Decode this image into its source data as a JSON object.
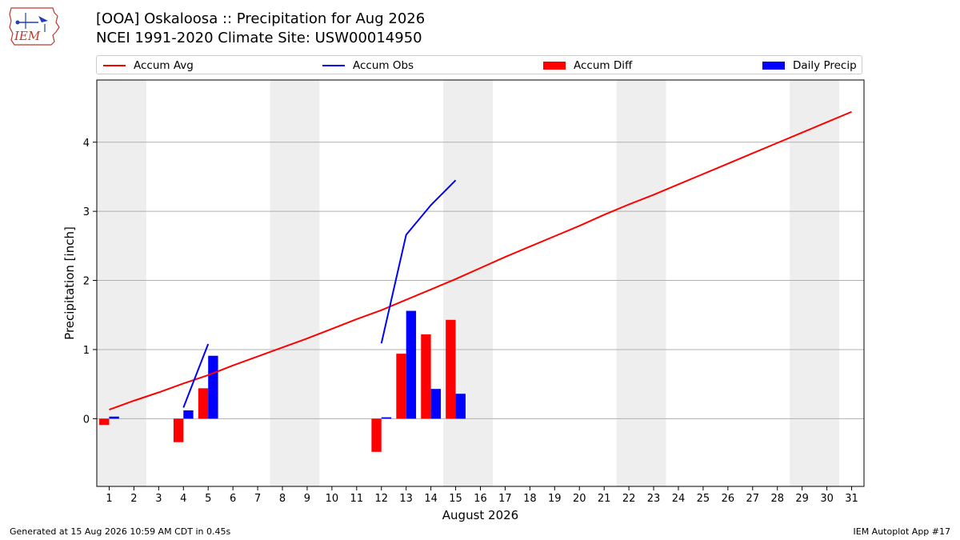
{
  "logo": {
    "text": "IEM"
  },
  "header": {
    "title": "[OOA] Oskaloosa :: Precipitation for Aug 2026",
    "subtitle": "NCEI 1991-2020 Climate Site: USW00014950"
  },
  "footer": {
    "generated": "Generated at 15 Aug 2026 10:59 AM CDT in 0.45s",
    "app": "IEM Autoplot App #17"
  },
  "chart_data": {
    "type": "bar",
    "xlabel": "August 2026",
    "ylabel": "Precipitation [inch]",
    "xlim": [
      0.5,
      31.5
    ],
    "ylim": [
      -0.98,
      4.9
    ],
    "yticks": [
      0,
      1,
      2,
      3,
      4
    ],
    "x_ticks": [
      1,
      2,
      3,
      4,
      5,
      6,
      7,
      8,
      9,
      10,
      11,
      12,
      13,
      14,
      15,
      16,
      17,
      18,
      19,
      20,
      21,
      22,
      23,
      24,
      25,
      26,
      27,
      28,
      29,
      30,
      31
    ],
    "grid": "horizontal",
    "weekend_shading": [
      [
        0.5,
        2.5
      ],
      [
        7.5,
        9.5
      ],
      [
        14.5,
        16.5
      ],
      [
        21.5,
        23.5
      ],
      [
        28.5,
        30.5
      ]
    ],
    "legend": {
      "placement": "top",
      "entries": [
        "Accum Avg",
        "Accum Obs",
        "Accum Diff",
        "Daily Precip"
      ]
    },
    "colors": {
      "accum_avg": "#ff0000",
      "accum_obs": "#0000ff",
      "accum_diff": "#ff0000",
      "daily_precip": "#0000ff",
      "shade": "#eeeeee"
    },
    "series": [
      {
        "name": "Accum Avg",
        "kind": "line",
        "x": [
          1,
          2,
          3,
          4,
          5,
          6,
          7,
          8,
          9,
          10,
          11,
          12,
          13,
          14,
          15,
          16,
          17,
          18,
          19,
          20,
          21,
          22,
          23,
          24,
          25,
          26,
          27,
          28,
          29,
          30,
          31
        ],
        "values": [
          0.13,
          0.26,
          0.38,
          0.51,
          0.63,
          0.77,
          0.9,
          1.03,
          1.16,
          1.3,
          1.44,
          1.57,
          1.72,
          1.87,
          2.02,
          2.18,
          2.34,
          2.49,
          2.64,
          2.79,
          2.95,
          3.1,
          3.24,
          3.39,
          3.54,
          3.69,
          3.84,
          3.99,
          4.14,
          4.29,
          4.44
        ]
      },
      {
        "name": "Accum Obs",
        "kind": "line",
        "segments": [
          {
            "x": [
              4,
              5
            ],
            "values": [
              0.16,
              1.08
            ]
          },
          {
            "x": [
              12,
              13,
              14,
              15
            ],
            "values": [
              1.09,
              2.66,
              3.09,
              3.45
            ]
          }
        ]
      },
      {
        "name": "Accum Diff",
        "kind": "bar",
        "x": [
          1,
          4,
          5,
          12,
          13,
          14,
          15
        ],
        "values": [
          -0.09,
          -0.34,
          0.44,
          -0.48,
          0.94,
          1.22,
          1.43
        ]
      },
      {
        "name": "Daily Precip",
        "kind": "bar",
        "x": [
          1,
          4,
          5,
          12,
          13,
          14,
          15
        ],
        "values": [
          0.03,
          0.12,
          0.91,
          0.02,
          1.56,
          0.43,
          0.36
        ]
      }
    ]
  }
}
